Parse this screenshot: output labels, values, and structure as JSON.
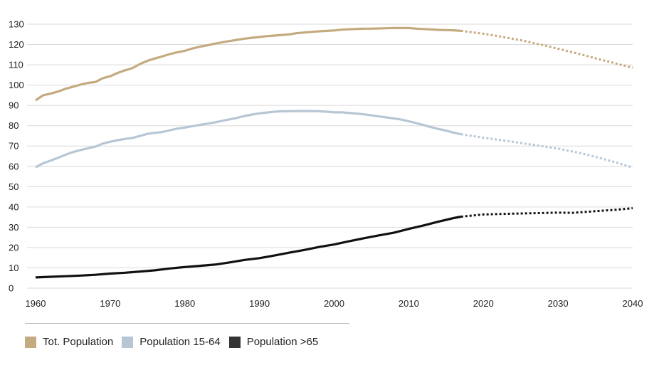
{
  "chart_data": {
    "type": "line",
    "title": "",
    "xlabel": "",
    "ylabel": "",
    "xlim": [
      1960,
      2040
    ],
    "ylim": [
      0,
      130
    ],
    "x_ticks": [
      "1960",
      "1970",
      "1980",
      "1990",
      "2000",
      "2010",
      "2020",
      "2030",
      "2040"
    ],
    "y_ticks": [
      "0",
      "10",
      "20",
      "30",
      "40",
      "50",
      "60",
      "70",
      "80",
      "90",
      "100",
      "110",
      "120",
      "130"
    ],
    "grid": "horizontal",
    "legend_position": "bottom-left",
    "series": [
      {
        "name": "Tot. Population",
        "color": "#c4aa7f",
        "actual": {
          "x": [
            1960,
            1961,
            1962,
            1963,
            1964,
            1965,
            1966,
            1967,
            1968,
            1969,
            1970,
            1971,
            1972,
            1973,
            1974,
            1975,
            1976,
            1977,
            1978,
            1979,
            1980,
            1981,
            1982,
            1983,
            1984,
            1985,
            1986,
            1987,
            1988,
            1989,
            1990,
            1991,
            1992,
            1993,
            1994,
            1995,
            1996,
            1997,
            1998,
            1999,
            2000,
            2001,
            2002,
            2003,
            2004,
            2005,
            2006,
            2007,
            2008,
            2009,
            2010,
            2011,
            2012,
            2013,
            2014,
            2015,
            2016,
            2017
          ],
          "y": [
            92.5,
            95,
            95.8,
            96.8,
            98.2,
            99.2,
            100.2,
            101.1,
            101.5,
            103.4,
            104.4,
            106,
            107.3,
            108.4,
            110.4,
            112,
            113.1,
            114.2,
            115.3,
            116.2,
            116.9,
            118,
            118.9,
            119.6,
            120.4,
            121.1,
            121.7,
            122.3,
            122.9,
            123.3,
            123.7,
            124.1,
            124.4,
            124.7,
            125,
            125.6,
            125.9,
            126.2,
            126.5,
            126.7,
            126.9,
            127.3,
            127.5,
            127.7,
            127.8,
            127.8,
            127.9,
            128,
            128.1,
            128.1,
            128.1,
            127.8,
            127.6,
            127.4,
            127.2,
            127.1,
            127,
            126.7
          ]
        },
        "projected": {
          "x": [
            2017,
            2020,
            2022,
            2025,
            2028,
            2030,
            2033,
            2035,
            2038,
            2040
          ],
          "y": [
            126.7,
            125.3,
            124.1,
            122.1,
            119.7,
            117.9,
            115.2,
            113.2,
            110.4,
            108.6
          ]
        }
      },
      {
        "name": "Population 15-64",
        "color": "#b7c6d5",
        "actual": {
          "x": [
            1960,
            1961,
            1962,
            1963,
            1964,
            1965,
            1966,
            1967,
            1968,
            1969,
            1970,
            1971,
            1972,
            1973,
            1974,
            1975,
            1976,
            1977,
            1978,
            1979,
            1980,
            1981,
            1982,
            1983,
            1984,
            1985,
            1986,
            1987,
            1988,
            1989,
            1990,
            1991,
            1992,
            1993,
            1994,
            1995,
            1996,
            1997,
            1998,
            1999,
            2000,
            2001,
            2002,
            2003,
            2004,
            2005,
            2006,
            2007,
            2008,
            2009,
            2010,
            2011,
            2012,
            2013,
            2014,
            2015,
            2016,
            2017
          ],
          "y": [
            59.5,
            61.5,
            62.8,
            64.2,
            65.7,
            67,
            68,
            68.9,
            69.7,
            71.2,
            72.1,
            72.9,
            73.5,
            74,
            75,
            76,
            76.5,
            76.9,
            77.8,
            78.6,
            79.1,
            79.8,
            80.4,
            81,
            81.6,
            82.4,
            83.1,
            83.9,
            84.8,
            85.5,
            86.1,
            86.5,
            86.9,
            87.1,
            87.1,
            87.2,
            87.2,
            87.2,
            87.1,
            86.9,
            86.6,
            86.6,
            86.3,
            86,
            85.6,
            85.1,
            84.6,
            84.1,
            83.6,
            83,
            82.2,
            81.3,
            80.3,
            79.3,
            78.4,
            77.6,
            76.6,
            75.8
          ]
        },
        "projected": {
          "x": [
            2017,
            2020,
            2025,
            2030,
            2033,
            2035,
            2038,
            2040
          ],
          "y": [
            75.8,
            74.1,
            71.5,
            68.7,
            66.5,
            64.7,
            61.7,
            59.4
          ]
        }
      },
      {
        "name": "Population >65",
        "color": "#111111",
        "actual": {
          "x": [
            1960,
            1962,
            1964,
            1966,
            1968,
            1970,
            1972,
            1974,
            1976,
            1978,
            1980,
            1982,
            1984,
            1986,
            1988,
            1990,
            1992,
            1994,
            1996,
            1998,
            2000,
            2002,
            2004,
            2006,
            2008,
            2010,
            2012,
            2014,
            2016,
            2017
          ],
          "y": [
            5.3,
            5.6,
            5.9,
            6.2,
            6.6,
            7.2,
            7.6,
            8.2,
            8.8,
            9.7,
            10.4,
            11,
            11.6,
            12.7,
            13.9,
            14.8,
            16.1,
            17.5,
            18.8,
            20.3,
            21.5,
            23.1,
            24.6,
            26,
            27.3,
            29.2,
            30.9,
            32.8,
            34.5,
            35.2
          ]
        },
        "projected": {
          "x": [
            2017,
            2020,
            2022,
            2025,
            2028,
            2030,
            2032,
            2035,
            2038,
            2040
          ],
          "y": [
            35.2,
            36.3,
            36.5,
            36.8,
            37,
            37.2,
            37.1,
            37.9,
            38.7,
            39.4
          ]
        }
      }
    ]
  }
}
